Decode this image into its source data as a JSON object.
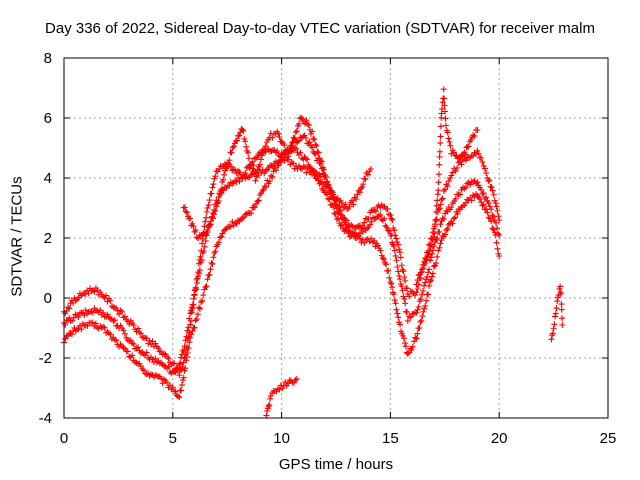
{
  "chart_data": {
    "type": "scatter",
    "title": "Day 336 of 2022, Sidereal Day-to-day VTEC variation (SDTVAR) for receiver malm",
    "xlabel": "GPS time / hours",
    "ylabel": "SDTVAR / TECUs",
    "xlim": [
      0,
      25
    ],
    "ylim": [
      -4,
      8
    ],
    "x_ticks": [
      0,
      5,
      10,
      15,
      20,
      25
    ],
    "y_ticks": [
      -4,
      -2,
      0,
      2,
      4,
      6,
      8
    ],
    "x_tick_labels": [
      "0",
      "5",
      "10",
      "15",
      "20",
      "25"
    ],
    "y_tick_labels": [
      "-4",
      "-2",
      "0",
      "2",
      "4",
      "6",
      "8"
    ],
    "grid": true,
    "marker": "+",
    "color": "#ff0000",
    "series": [
      {
        "x": [
          0.0,
          0.3,
          0.6,
          1.0,
          1.4,
          1.8,
          2.2,
          2.6,
          3.0,
          3.4,
          3.8,
          4.2,
          4.6,
          5.0,
          5.3,
          5.5,
          5.8,
          6.2,
          6.6,
          7.0,
          7.4,
          7.8,
          8.2,
          8.6,
          9.0,
          9.4,
          9.8,
          10.2,
          10.6,
          11.0,
          11.4,
          11.8,
          12.2,
          12.6,
          13.0,
          13.4,
          13.8,
          14.2,
          14.6,
          15.0,
          15.4,
          15.8,
          16.2,
          16.6,
          17.0,
          17.4,
          17.8,
          18.2,
          18.6,
          19.0,
          19.4,
          19.8,
          20.0
        ],
        "y": [
          -1.4,
          -1.2,
          -1.0,
          -0.9,
          -0.9,
          -1.0,
          -1.3,
          -1.6,
          -1.9,
          -2.2,
          -2.5,
          -2.6,
          -2.8,
          -3.0,
          -3.3,
          -2.6,
          -1.4,
          -0.4,
          0.6,
          1.7,
          2.3,
          2.5,
          2.6,
          2.9,
          3.4,
          3.9,
          4.4,
          4.9,
          5.0,
          4.7,
          4.3,
          3.8,
          3.2,
          2.6,
          2.2,
          2.0,
          1.9,
          1.9,
          1.5,
          0.6,
          -0.8,
          -1.9,
          -1.3,
          -0.2,
          1.0,
          2.0,
          2.5,
          3.0,
          3.3,
          3.4,
          2.9,
          2.2,
          1.4
        ]
      },
      {
        "x": [
          0.0,
          0.3,
          0.6,
          1.0,
          1.4,
          1.8,
          2.2,
          2.6,
          3.0,
          3.4,
          3.8,
          4.2,
          4.6,
          5.0,
          5.3,
          5.5,
          5.8,
          6.2,
          6.6,
          7.0,
          7.4,
          7.8,
          8.2,
          8.6,
          9.0,
          9.4,
          9.8,
          10.2,
          10.6,
          11.0,
          11.4,
          11.8,
          12.2,
          12.6,
          13.0,
          13.4,
          13.8,
          14.2,
          14.6,
          15.0,
          15.4,
          15.8,
          16.2,
          16.6,
          17.0,
          17.4,
          17.8,
          18.2,
          18.6,
          19.0,
          19.4,
          19.8,
          20.0
        ],
        "y": [
          -0.9,
          -0.7,
          -0.6,
          -0.5,
          -0.4,
          -0.5,
          -0.7,
          -1.0,
          -1.4,
          -1.7,
          -1.9,
          -2.1,
          -2.2,
          -2.5,
          -2.3,
          -1.7,
          -0.6,
          0.8,
          2.2,
          3.2,
          3.7,
          3.9,
          4.0,
          4.1,
          4.2,
          4.3,
          4.5,
          4.8,
          5.2,
          5.4,
          5.0,
          4.4,
          3.6,
          2.9,
          2.3,
          2.1,
          2.3,
          2.6,
          2.7,
          2.2,
          0.8,
          -0.7,
          -0.5,
          0.5,
          1.7,
          2.6,
          3.1,
          3.5,
          3.8,
          3.9,
          3.3,
          2.6,
          2.1
        ]
      },
      {
        "x": [
          0.0,
          0.3,
          0.6,
          1.0,
          1.4,
          1.8,
          2.2,
          2.6,
          3.0,
          3.4,
          3.8,
          4.2,
          4.6,
          5.0,
          5.3,
          5.5,
          5.8,
          6.2,
          6.6,
          7.0,
          7.4,
          7.8,
          8.2,
          8.6,
          9.0,
          9.4,
          9.8,
          10.2,
          10.6,
          11.0,
          11.4,
          11.8,
          12.2,
          12.6,
          13.0,
          13.4,
          13.8,
          14.2,
          14.6,
          15.0,
          15.4,
          15.8,
          16.2,
          16.6,
          17.0,
          17.4,
          17.8,
          18.2,
          18.6,
          19.0,
          19.4,
          19.8,
          20.0
        ],
        "y": [
          -0.5,
          -0.2,
          0.0,
          0.2,
          0.3,
          0.1,
          -0.2,
          -0.5,
          -0.8,
          -1.1,
          -1.4,
          -1.6,
          -1.9,
          -2.2,
          -2.5,
          -2.2,
          -0.9,
          1.1,
          3.0,
          4.2,
          4.5,
          4.3,
          4.1,
          4.4,
          4.8,
          5.0,
          4.9,
          4.6,
          4.4,
          4.3,
          4.2,
          4.0,
          3.6,
          3.1,
          2.5,
          2.3,
          2.5,
          2.9,
          3.1,
          2.8,
          1.6,
          0.1,
          0.2,
          1.2,
          2.3,
          3.4,
          4.1,
          4.5,
          4.7,
          4.9,
          4.2,
          3.3,
          2.6
        ]
      },
      {
        "x": [
          5.5,
          5.7,
          5.9,
          6.1,
          6.3,
          6.5,
          6.8,
          7.1,
          7.4,
          7.7,
          8.0,
          8.2,
          8.5,
          8.8,
          9.0,
          9.2,
          9.5,
          9.8,
          10.0,
          10.3,
          10.6,
          10.9,
          11.2,
          11.5,
          11.8,
          12.1,
          12.4,
          12.7,
          13.0,
          13.3,
          13.6,
          13.9,
          14.1
        ],
        "y": [
          3.0,
          2.8,
          2.4,
          2.1,
          2.0,
          2.1,
          2.6,
          3.3,
          4.2,
          4.9,
          5.4,
          5.7,
          4.6,
          4.0,
          4.5,
          5.0,
          5.4,
          5.5,
          5.2,
          4.8,
          5.4,
          6.0,
          5.8,
          5.3,
          4.6,
          3.9,
          3.4,
          3.2,
          3.0,
          3.2,
          3.6,
          4.1,
          4.3
        ]
      },
      {
        "x": [
          9.3,
          9.4,
          9.5,
          9.7,
          9.9,
          10.1,
          10.3,
          10.5,
          10.7
        ],
        "y": [
          -3.9,
          -3.6,
          -3.3,
          -3.1,
          -3.0,
          -2.9,
          -2.8,
          -2.8,
          -2.7
        ]
      },
      {
        "x": [
          16.2,
          16.5,
          16.8,
          17.0,
          17.2,
          17.35,
          17.45,
          17.55,
          17.8,
          18.1,
          18.4,
          18.6,
          18.8,
          19.0
        ],
        "y": [
          0.5,
          1.1,
          1.6,
          2.0,
          3.6,
          6.2,
          6.9,
          5.8,
          4.9,
          4.6,
          4.8,
          5.1,
          5.4,
          5.6
        ]
      },
      {
        "x": [
          22.4,
          22.5,
          22.6,
          22.7,
          22.8,
          22.85,
          22.9
        ],
        "y": [
          -1.3,
          -1.0,
          -0.5,
          0.0,
          0.4,
          0.1,
          -0.9
        ]
      }
    ]
  }
}
